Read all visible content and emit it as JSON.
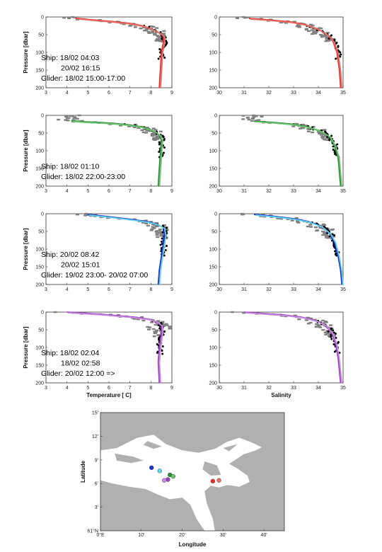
{
  "chart_data": {
    "type": "line",
    "description_units": {
      "pressure": "dbar",
      "temperature": "C"
    },
    "row_labels": [
      [
        "Ship: 18/02 04:03",
        "20/02 16:15",
        "Glider: 18/02 15:00-17:00"
      ],
      [
        "Ship: 18/02 01:10",
        "Glider: 18/02 22:00-23:00"
      ],
      [
        "Ship: 20/02 08:42",
        "20/02 15:01",
        "Glider: 19/02 23:00- 20/02 07:00"
      ],
      [
        "Ship: 18/02 02:04",
        "18/02 02:58",
        "Glider: 20/02 12:00 =>"
      ]
    ],
    "profile_ylabel": "Pressure [dbar]",
    "temperature_xlabel": "Temperature [ C]",
    "salinity_xlabel": "Salinity",
    "pressure_ylim": [
      0,
      200
    ],
    "pressure_ticks": [
      "0",
      "50",
      "100",
      "150",
      "200"
    ],
    "temperature_xlim": [
      3,
      9
    ],
    "temperature_ticks": [
      "3",
      "4",
      "5",
      "6",
      "7",
      "8",
      "9"
    ],
    "salinity_xlim": [
      30,
      35
    ],
    "salinity_ticks": [
      "30",
      "31",
      "32",
      "33",
      "34",
      "35"
    ],
    "rows": [
      {
        "colors": [
          "#e5332a",
          "#e66f6a"
        ],
        "temp": [
          [
            4.4,
            3
          ],
          [
            5.2,
            8
          ],
          [
            6.2,
            13
          ],
          [
            7.0,
            18
          ],
          [
            7.6,
            25
          ],
          [
            8.0,
            33
          ],
          [
            8.4,
            45
          ],
          [
            8.6,
            55
          ],
          [
            8.6,
            70
          ],
          [
            8.5,
            100
          ],
          [
            8.45,
            150
          ],
          [
            8.4,
            200
          ]
        ],
        "sal": [
          [
            31.2,
            4
          ],
          [
            32.0,
            8
          ],
          [
            32.9,
            14
          ],
          [
            33.5,
            22
          ],
          [
            34.0,
            35
          ],
          [
            34.4,
            52
          ],
          [
            34.6,
            70
          ],
          [
            34.75,
            100
          ],
          [
            34.85,
            150
          ],
          [
            34.9,
            200
          ]
        ]
      },
      {
        "colors": [
          "#2e8b3d",
          "#6cc46f"
        ],
        "temp": [
          [
            4.2,
            15
          ],
          [
            4.8,
            18
          ],
          [
            5.6,
            20
          ],
          [
            6.3,
            23
          ],
          [
            7.0,
            27
          ],
          [
            7.6,
            33
          ],
          [
            8.1,
            43
          ],
          [
            8.4,
            55
          ],
          [
            8.5,
            70
          ],
          [
            8.45,
            110
          ],
          [
            8.4,
            150
          ],
          [
            8.35,
            200
          ]
        ],
        "sal": [
          [
            31.4,
            16
          ],
          [
            32.2,
            20
          ],
          [
            33.0,
            25
          ],
          [
            33.6,
            33
          ],
          [
            34.1,
            45
          ],
          [
            34.45,
            60
          ],
          [
            34.65,
            85
          ],
          [
            34.8,
            120
          ],
          [
            34.9,
            200
          ]
        ]
      },
      {
        "colors": [
          "#1d2fd1",
          "#5fd3ea"
        ],
        "temp": [
          [
            5.0,
            2
          ],
          [
            5.8,
            7
          ],
          [
            6.5,
            12
          ],
          [
            7.2,
            17
          ],
          [
            7.9,
            23
          ],
          [
            8.3,
            30
          ],
          [
            8.6,
            40
          ],
          [
            8.65,
            60
          ],
          [
            8.6,
            80
          ],
          [
            8.5,
            120
          ],
          [
            8.4,
            160
          ],
          [
            8.35,
            200
          ]
        ],
        "sal": [
          [
            31.4,
            2
          ],
          [
            32.2,
            7
          ],
          [
            33.0,
            14
          ],
          [
            33.6,
            22
          ],
          [
            34.1,
            35
          ],
          [
            34.45,
            55
          ],
          [
            34.65,
            80
          ],
          [
            34.8,
            120
          ],
          [
            34.9,
            160
          ],
          [
            34.95,
            200
          ]
        ]
      },
      {
        "colors": [
          "#9b3fbf",
          "#c88be0"
        ],
        "temp": [
          [
            4.0,
            0
          ],
          [
            4.8,
            3
          ],
          [
            5.6,
            6
          ],
          [
            6.4,
            10
          ],
          [
            7.2,
            14
          ],
          [
            7.9,
            20
          ],
          [
            8.3,
            28
          ],
          [
            8.5,
            38
          ],
          [
            8.5,
            60
          ],
          [
            8.4,
            100
          ],
          [
            8.35,
            140
          ],
          [
            8.4,
            200
          ]
        ],
        "sal": [
          [
            31.0,
            0
          ],
          [
            31.8,
            4
          ],
          [
            32.6,
            8
          ],
          [
            33.3,
            14
          ],
          [
            33.9,
            24
          ],
          [
            34.3,
            38
          ],
          [
            34.55,
            60
          ],
          [
            34.7,
            90
          ],
          [
            34.8,
            130
          ],
          [
            34.9,
            200
          ]
        ]
      }
    ],
    "ship_color": "#000000",
    "glider_color": "#808080",
    "map": {
      "xlabel": "Longitude",
      "ylabel": "Latitude",
      "lon_ticks": [
        "0°E",
        "10'",
        "20'",
        "30'",
        "40'"
      ],
      "lat_ticks": [
        "61°N",
        "3'",
        "6'",
        "9'",
        "12'",
        "15'"
      ],
      "lon_range": [
        0,
        45
      ],
      "lat_range": [
        0,
        15
      ],
      "land_color": "#b0b0b0",
      "water_color": "#ffffff",
      "markers": [
        {
          "lon": 12.5,
          "lat": 8.0,
          "color": "#1d2fd1"
        },
        {
          "lon": 14.5,
          "lat": 7.6,
          "color": "#5fd3ea"
        },
        {
          "lon": 17.0,
          "lat": 7.1,
          "color": "#2e8b3d"
        },
        {
          "lon": 17.8,
          "lat": 6.9,
          "color": "#6cc46f"
        },
        {
          "lon": 16.5,
          "lat": 6.5,
          "color": "#9b3fbf"
        },
        {
          "lon": 15.6,
          "lat": 6.4,
          "color": "#c88be0"
        },
        {
          "lon": 27.5,
          "lat": 6.3,
          "color": "#e5332a"
        },
        {
          "lon": 29.0,
          "lat": 6.4,
          "color": "#e66f6a"
        }
      ]
    }
  }
}
